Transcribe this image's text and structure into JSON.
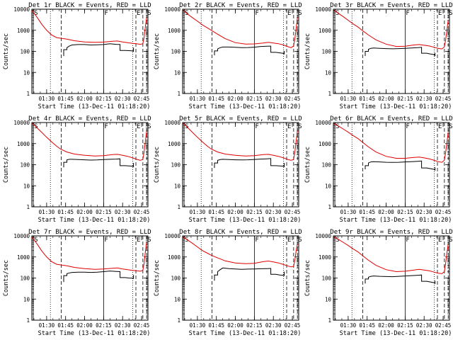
{
  "chart_data": {
    "type": "line",
    "layout": "3x3 grid of small multiples",
    "shared": {
      "ylabel": "Counts/sec",
      "xlabel": "Start Time (13-Dec-11 01:18:20)",
      "yscale": "log",
      "ylim": [
        1,
        10000
      ],
      "yticks": [
        "1",
        "10",
        "100",
        "1000",
        "10000"
      ],
      "xlim_minutes": [
        78.333,
        170
      ],
      "xticks": [
        {
          "label": "01:30",
          "minute": 90
        },
        {
          "label": "01:45",
          "minute": 105
        },
        {
          "label": "02:00",
          "minute": 120
        },
        {
          "label": "02:15",
          "minute": 135
        },
        {
          "label": "02:30",
          "minute": 150
        },
        {
          "label": "02:45",
          "minute": 165
        }
      ],
      "series_colors": {
        "events": "#000000",
        "lld": "#e00000"
      },
      "markers": [
        {
          "label": "S",
          "minute": 79.5,
          "style": "solid"
        },
        {
          "label": "",
          "minute": 93,
          "style": "dotted"
        },
        {
          "label": "",
          "minute": 101.5,
          "style": "dashed"
        },
        {
          "label": "F",
          "minute": 135,
          "style": "solid"
        },
        {
          "label": "",
          "minute": 158,
          "style": "dotted"
        },
        {
          "label": "E",
          "minute": 160.5,
          "style": "dashed"
        },
        {
          "label": "",
          "minute": 166,
          "style": "dashed"
        },
        {
          "label": "S",
          "minute": 169,
          "style": "dashed"
        }
      ]
    },
    "panels": [
      {
        "title": "Det 1r BLACK = Events, RED = LLD",
        "events": {
          "x": [
            103.5,
            103.5,
            106,
            106,
            108,
            110,
            115,
            120,
            125,
            130,
            135,
            140,
            145,
            148,
            148,
            152,
            155,
            158,
            158.6,
            158.6
          ],
          "y": [
            60,
            120,
            120,
            150,
            180,
            200,
            210,
            210,
            200,
            205,
            210,
            230,
            215,
            210,
            110,
            110,
            108,
            105,
            100,
            150
          ]
        },
        "lld": {
          "x": [
            78.5,
            82,
            86,
            90,
            94,
            98,
            101,
            106,
            112,
            120,
            128,
            135,
            142,
            146,
            150,
            154,
            158,
            161,
            164,
            166,
            167,
            168,
            169
          ],
          "y": [
            9000,
            4500,
            2000,
            1000,
            600,
            450,
            420,
            380,
            320,
            280,
            270,
            275,
            300,
            310,
            280,
            260,
            240,
            230,
            215,
            230,
            450,
            1500,
            4000
          ]
        }
      },
      {
        "title": "Det 2r BLACK = Events, RED = LLD",
        "events": {
          "x": [
            103.5,
            103.5,
            106,
            106,
            108,
            110,
            115,
            120,
            125,
            130,
            135,
            140,
            145,
            148,
            148,
            152,
            155,
            158,
            158.6,
            158.6
          ],
          "y": [
            65,
            105,
            105,
            130,
            150,
            160,
            160,
            155,
            150,
            152,
            158,
            170,
            175,
            178,
            90,
            90,
            85,
            80,
            75,
            105
          ]
        },
        "lld": {
          "x": [
            78.5,
            82,
            86,
            90,
            94,
            98,
            101,
            106,
            112,
            120,
            128,
            135,
            142,
            146,
            150,
            154,
            158,
            161,
            164,
            166,
            167,
            168,
            169
          ],
          "y": [
            9000,
            6000,
            4000,
            2700,
            1800,
            1300,
            1000,
            650,
            400,
            260,
            220,
            225,
            250,
            270,
            250,
            230,
            200,
            170,
            150,
            180,
            400,
            1200,
            4000
          ]
        }
      },
      {
        "title": "Det 3r BLACK = Events, RED = LLD",
        "events": {
          "x": [
            103.5,
            103.5,
            106,
            106,
            108,
            110,
            115,
            120,
            125,
            130,
            135,
            140,
            145,
            148,
            148,
            152,
            155,
            158,
            158.6,
            158.6
          ],
          "y": [
            60,
            100,
            100,
            125,
            140,
            145,
            140,
            135,
            132,
            135,
            140,
            145,
            150,
            155,
            82,
            82,
            75,
            70,
            60,
            85
          ]
        },
        "lld": {
          "x": [
            78.5,
            82,
            86,
            90,
            94,
            98,
            101,
            106,
            112,
            120,
            128,
            135,
            142,
            146,
            150,
            154,
            158,
            161,
            164,
            166,
            167,
            168,
            169
          ],
          "y": [
            9000,
            6500,
            4500,
            3000,
            2000,
            1400,
            1000,
            600,
            350,
            220,
            170,
            175,
            200,
            210,
            195,
            180,
            155,
            140,
            130,
            160,
            350,
            1000,
            3000
          ]
        }
      },
      {
        "title": "Det 4r BLACK = Events, RED = LLD",
        "events": {
          "x": [
            103.5,
            103.5,
            106,
            106,
            108,
            110,
            115,
            120,
            125,
            130,
            135,
            140,
            145,
            148,
            148,
            152,
            155,
            158,
            158.6,
            158.6
          ],
          "y": [
            75,
            130,
            130,
            170,
            180,
            180,
            175,
            170,
            165,
            168,
            175,
            180,
            185,
            190,
            90,
            90,
            88,
            85,
            80,
            120
          ]
        },
        "lld": {
          "x": [
            78.5,
            82,
            86,
            90,
            94,
            98,
            101,
            106,
            112,
            120,
            128,
            135,
            142,
            146,
            150,
            154,
            158,
            161,
            164,
            166,
            167,
            168,
            169
          ],
          "y": [
            9500,
            6000,
            3500,
            2000,
            1200,
            750,
            550,
            400,
            320,
            280,
            260,
            270,
            300,
            310,
            280,
            250,
            210,
            180,
            160,
            180,
            400,
            1300,
            4000
          ]
        }
      },
      {
        "title": "Det 5r BLACK = Events, RED = LLD",
        "events": {
          "x": [
            103.5,
            103.5,
            106,
            106,
            108,
            110,
            115,
            120,
            125,
            130,
            135,
            140,
            145,
            148,
            148,
            152,
            155,
            158,
            158.6,
            158.6
          ],
          "y": [
            70,
            120,
            120,
            160,
            175,
            180,
            175,
            170,
            168,
            170,
            178,
            185,
            190,
            195,
            90,
            90,
            88,
            85,
            80,
            120
          ]
        },
        "lld": {
          "x": [
            78.5,
            82,
            86,
            90,
            94,
            98,
            101,
            106,
            112,
            120,
            128,
            135,
            142,
            146,
            150,
            154,
            158,
            161,
            164,
            166,
            167,
            168,
            169
          ],
          "y": [
            9500,
            6000,
            3500,
            2000,
            1200,
            750,
            550,
            400,
            320,
            280,
            260,
            270,
            300,
            310,
            280,
            250,
            210,
            180,
            160,
            180,
            400,
            1300,
            4000
          ]
        }
      },
      {
        "title": "Det 6r BLACK = Events, RED = LLD",
        "events": {
          "x": [
            103.5,
            103.5,
            106,
            106,
            108,
            110,
            115,
            120,
            125,
            130,
            135,
            140,
            145,
            148,
            148,
            152,
            155,
            158,
            158.6,
            158.6
          ],
          "y": [
            60,
            90,
            90,
            120,
            135,
            140,
            135,
            130,
            128,
            130,
            135,
            140,
            145,
            150,
            70,
            70,
            65,
            60,
            55,
            75
          ]
        },
        "lld": {
          "x": [
            78.5,
            82,
            86,
            90,
            94,
            98,
            101,
            106,
            112,
            120,
            128,
            135,
            142,
            146,
            150,
            154,
            158,
            161,
            164,
            166,
            167,
            168,
            169
          ],
          "y": [
            9000,
            7000,
            5000,
            3500,
            2400,
            1700,
            1200,
            700,
            400,
            250,
            200,
            200,
            220,
            230,
            210,
            190,
            160,
            140,
            130,
            160,
            380,
            1100,
            3500
          ]
        }
      },
      {
        "title": "Det 7r BLACK = Events, RED = LLD",
        "events": {
          "x": [
            103.5,
            103.5,
            106,
            106,
            108,
            110,
            115,
            120,
            125,
            130,
            135,
            140,
            145,
            148,
            148,
            152,
            155,
            158,
            158.6,
            158.6
          ],
          "y": [
            65,
            130,
            130,
            160,
            175,
            185,
            190,
            190,
            185,
            190,
            200,
            215,
            205,
            200,
            105,
            105,
            100,
            98,
            95,
            140
          ]
        },
        "lld": {
          "x": [
            78.5,
            82,
            86,
            90,
            94,
            98,
            101,
            106,
            112,
            120,
            128,
            135,
            142,
            146,
            150,
            154,
            158,
            161,
            164,
            166,
            167,
            168,
            169
          ],
          "y": [
            9000,
            4500,
            2000,
            1000,
            600,
            450,
            420,
            380,
            320,
            280,
            260,
            270,
            290,
            300,
            270,
            250,
            230,
            220,
            210,
            230,
            500,
            1800,
            5000
          ]
        }
      },
      {
        "title": "Det 8r BLACK = Events, RED = LLD",
        "events": {
          "x": [
            103.5,
            103.5,
            106,
            106,
            108,
            110,
            115,
            120,
            125,
            130,
            135,
            140,
            145,
            148,
            148,
            152,
            155,
            158,
            158.6,
            158.6
          ],
          "y": [
            75,
            140,
            140,
            200,
            250,
            300,
            280,
            270,
            260,
            265,
            270,
            275,
            280,
            285,
            150,
            150,
            140,
            135,
            130,
            200
          ]
        },
        "lld": {
          "x": [
            78.5,
            82,
            86,
            90,
            94,
            98,
            101,
            106,
            112,
            120,
            128,
            135,
            142,
            146,
            150,
            154,
            158,
            161,
            164,
            166,
            167,
            168,
            169
          ],
          "y": [
            9000,
            6500,
            4500,
            3000,
            2000,
            1500,
            1200,
            900,
            650,
            520,
            480,
            500,
            600,
            640,
            580,
            520,
            440,
            380,
            340,
            360,
            700,
            2000,
            4000
          ]
        }
      },
      {
        "title": "Det 9r BLACK = Events, RED = LLD",
        "events": {
          "x": [
            103.5,
            103.5,
            106,
            106,
            108,
            110,
            115,
            120,
            125,
            130,
            135,
            140,
            145,
            148,
            148,
            152,
            155,
            158,
            158.6,
            158.6
          ],
          "y": [
            55,
            90,
            90,
            110,
            120,
            125,
            120,
            118,
            116,
            120,
            125,
            130,
            135,
            140,
            70,
            70,
            65,
            60,
            55,
            75
          ]
        },
        "lld": {
          "x": [
            78.5,
            82,
            86,
            90,
            94,
            98,
            101,
            106,
            112,
            120,
            128,
            135,
            142,
            146,
            150,
            154,
            158,
            161,
            164,
            166,
            167,
            168,
            169
          ],
          "y": [
            9000,
            7000,
            5000,
            3500,
            2400,
            1700,
            1200,
            700,
            400,
            250,
            200,
            210,
            240,
            260,
            240,
            220,
            190,
            170,
            160,
            200,
            500,
            1500,
            4000
          ]
        }
      }
    ]
  }
}
